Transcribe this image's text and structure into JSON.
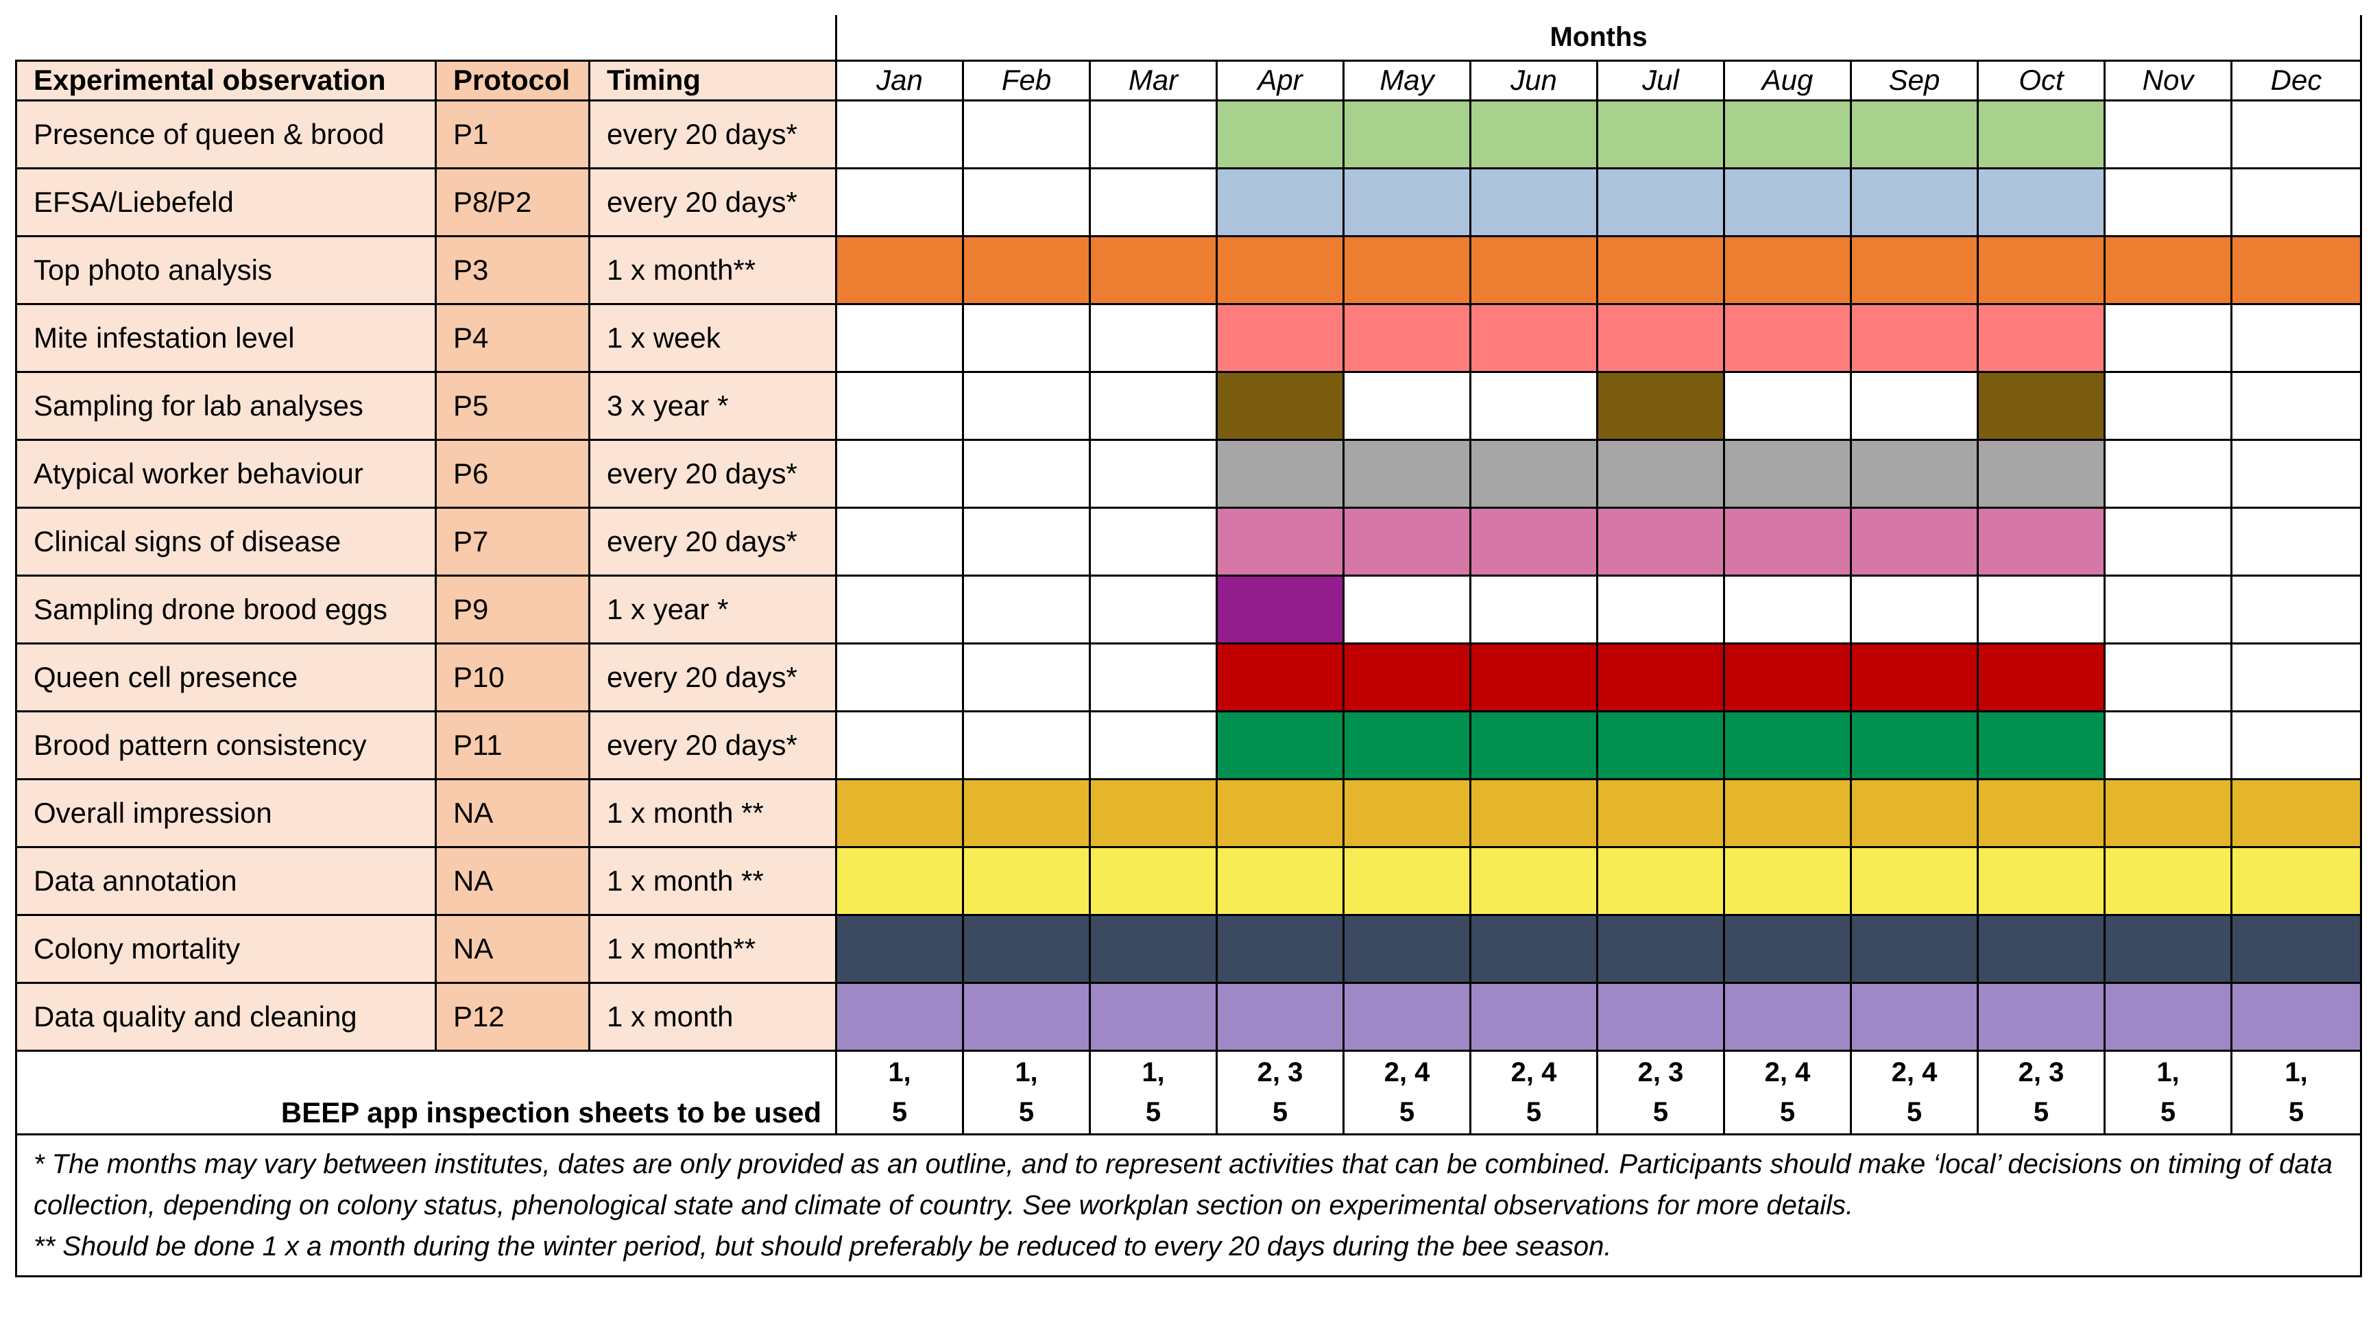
{
  "header": {
    "months_title": "Months",
    "col_observation": "Experimental observation",
    "col_protocol": "Protocol",
    "col_timing": "Timing",
    "months": [
      "Jan",
      "Feb",
      "Mar",
      "Apr",
      "May",
      "Jun",
      "Jul",
      "Aug",
      "Sep",
      "Oct",
      "Nov",
      "Dec"
    ]
  },
  "colors": {
    "green_light": "#a9d18e",
    "blue_light": "#adc3dc",
    "orange": "#ed7d31",
    "salmon": "#ff7c7c",
    "brown": "#7a5c0e",
    "gray": "#a6a6a6",
    "pink": "#d678a7",
    "purple": "#931d8d",
    "red": "#c00000",
    "green_dark": "#00904f",
    "gold": "#e5b62b",
    "yellow": "#f7ec54",
    "slate": "#3b4a61",
    "lavender": "#9e89c6"
  },
  "rows": [
    {
      "observation": "Presence of queen & brood",
      "protocol": "P1",
      "timing": "every 20 days*",
      "color": "#a9d18e",
      "months": [
        0,
        0,
        0,
        1,
        1,
        1,
        1,
        1,
        1,
        1,
        0,
        0
      ]
    },
    {
      "observation": "EFSA/Liebefeld",
      "protocol": "P8/P2",
      "timing": "every 20 days*",
      "color": "#adc3dc",
      "months": [
        0,
        0,
        0,
        1,
        1,
        1,
        1,
        1,
        1,
        1,
        0,
        0
      ]
    },
    {
      "observation": "Top photo analysis",
      "protocol": "P3",
      "timing": "1 x month**",
      "color": "#ed7d31",
      "months": [
        1,
        1,
        1,
        1,
        1,
        1,
        1,
        1,
        1,
        1,
        1,
        1
      ]
    },
    {
      "observation": "Mite infestation level",
      "protocol": "P4",
      "timing": "1 x week",
      "color": "#ff7c7c",
      "months": [
        0,
        0,
        0,
        1,
        1,
        1,
        1,
        1,
        1,
        1,
        0,
        0
      ]
    },
    {
      "observation": "Sampling for lab analyses",
      "protocol": "P5",
      "timing": "3 x year *",
      "color": "#7a5c0e",
      "months": [
        0,
        0,
        0,
        1,
        0,
        0,
        1,
        0,
        0,
        1,
        0,
        0
      ]
    },
    {
      "observation": "Atypical worker behaviour",
      "protocol": "P6",
      "timing": "every 20 days*",
      "color": "#a6a6a6",
      "months": [
        0,
        0,
        0,
        1,
        1,
        1,
        1,
        1,
        1,
        1,
        0,
        0
      ]
    },
    {
      "observation": "Clinical signs of disease",
      "protocol": "P7",
      "timing": "every 20 days*",
      "color": "#d678a7",
      "months": [
        0,
        0,
        0,
        1,
        1,
        1,
        1,
        1,
        1,
        1,
        0,
        0
      ]
    },
    {
      "observation": "Sampling drone brood eggs",
      "protocol": "P9",
      "timing": "1 x year *",
      "color": "#931d8d",
      "months": [
        0,
        0,
        0,
        1,
        0,
        0,
        0,
        0,
        0,
        0,
        0,
        0
      ]
    },
    {
      "observation": "Queen cell presence",
      "protocol": "P10",
      "timing": "every 20 days*",
      "color": "#c00000",
      "months": [
        0,
        0,
        0,
        1,
        1,
        1,
        1,
        1,
        1,
        1,
        0,
        0
      ]
    },
    {
      "observation": "Brood pattern consistency",
      "protocol": "P11",
      "timing": "every 20 days*",
      "color": "#00904f",
      "months": [
        0,
        0,
        0,
        1,
        1,
        1,
        1,
        1,
        1,
        1,
        0,
        0
      ]
    },
    {
      "observation": "Overall impression",
      "protocol": "NA",
      "timing": "1 x month **",
      "color": "#e5b62b",
      "months": [
        1,
        1,
        1,
        1,
        1,
        1,
        1,
        1,
        1,
        1,
        1,
        1
      ]
    },
    {
      "observation": "Data annotation",
      "protocol": "NA",
      "timing": "1 x month **",
      "color": "#f7ec54",
      "months": [
        1,
        1,
        1,
        1,
        1,
        1,
        1,
        1,
        1,
        1,
        1,
        1
      ]
    },
    {
      "observation": "Colony mortality",
      "protocol": "NA",
      "timing": "1 x month**",
      "color": "#3b4a61",
      "months": [
        1,
        1,
        1,
        1,
        1,
        1,
        1,
        1,
        1,
        1,
        1,
        1
      ]
    },
    {
      "observation": "Data quality and cleaning",
      "protocol": "P12",
      "timing": "1 x month",
      "color": "#9e89c6",
      "months": [
        1,
        1,
        1,
        1,
        1,
        1,
        1,
        1,
        1,
        1,
        1,
        1
      ]
    }
  ],
  "sheets": {
    "label": "BEEP app inspection sheets to be used",
    "values": [
      [
        "1,",
        "5"
      ],
      [
        "1,",
        "5"
      ],
      [
        "1,",
        "5"
      ],
      [
        "2, 3",
        "5"
      ],
      [
        "2, 4",
        "5"
      ],
      [
        "2, 4",
        "5"
      ],
      [
        "2, 3",
        "5"
      ],
      [
        "2, 4",
        "5"
      ],
      [
        "2, 4",
        "5"
      ],
      [
        "2, 3",
        "5"
      ],
      [
        "1,",
        "5"
      ],
      [
        "1,",
        "5"
      ]
    ]
  },
  "notes": {
    "note1": "* The months may vary between institutes, dates are only provided as an outline, and to represent activities that can be combined. Participants should make ‘local’ decisions on timing of data collection, depending on colony status, phenological state and climate of country. See workplan section on experimental observations for more details.",
    "note2": "** Should be done 1 x a month during the winter period, but should preferably be reduced to every 20 days during the bee season."
  }
}
